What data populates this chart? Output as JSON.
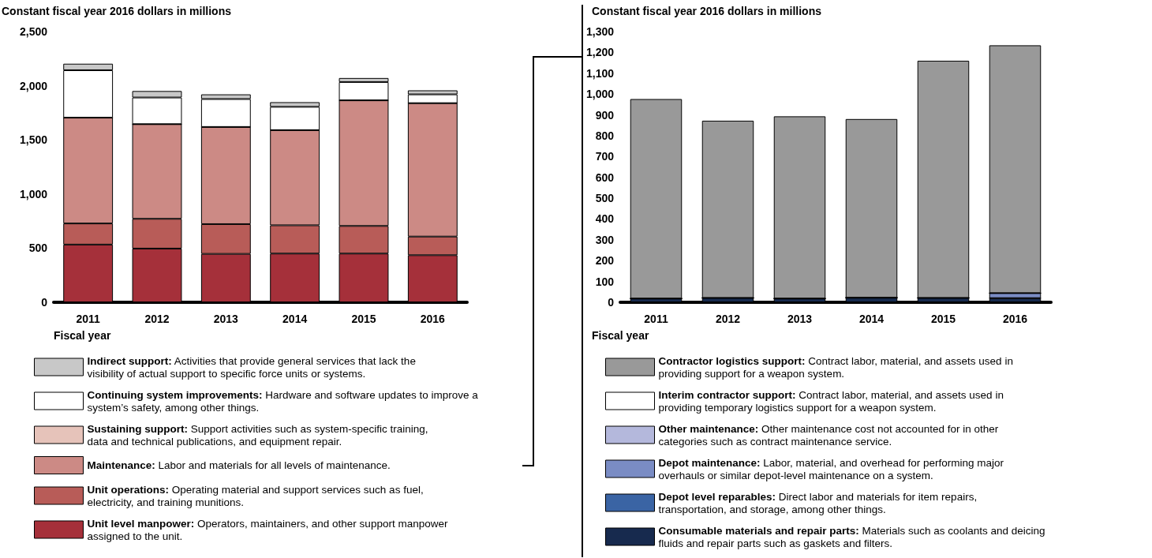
{
  "chart_data": [
    {
      "type": "bar",
      "stacked": true,
      "ylabel": "Constant fiscal year 2016 dollars in millions",
      "xlabel": "Fiscal year",
      "categories": [
        "2011",
        "2012",
        "2013",
        "2014",
        "2015",
        "2016"
      ],
      "ylim": [
        0,
        2500
      ],
      "yticks": [
        0,
        500,
        {
          "value": 1000,
          "label": "1,000"
        },
        {
          "value": 1500,
          "label": "1,500"
        },
        {
          "value": 2000,
          "label": "2,000"
        },
        {
          "value": 2500,
          "label": "2,500"
        }
      ],
      "grid": false,
      "legend": "bottom",
      "series": [
        {
          "name": "Unit level manpower: Operators, maintainers, and other support manpower assigned to the unit.",
          "color": "#a5303a",
          "values": [
            533,
            496,
            447,
            450,
            450,
            435
          ]
        },
        {
          "name": "Unit operations: Operating material and support services such as fuel, electricity, and training munitions.",
          "color": "#b85c58",
          "values": [
            195,
            275,
            275,
            261,
            255,
            172
          ]
        },
        {
          "name": "Maintenance: Labor and materials for all levels of maintenance.",
          "color": "#cc8a85",
          "values": [
            977,
            874,
            897,
            879,
            1160,
            1232
          ]
        },
        {
          "name": "Sustaining support: Support activities such as system-specific training, data and technical publications, and equipment repair.",
          "color": "#e6c3ba",
          "values": [
            0,
            0,
            0,
            0,
            0,
            0
          ]
        },
        {
          "name": "Continuing system improvements: Hardware and software updates to improve a system’s safety, among other things.",
          "color": "#ffffff",
          "values": [
            438,
            246,
            258,
            215,
            169,
            81
          ]
        },
        {
          "name": "Indirect support: Activities that provide general services that lack the visibility of actual support to specific force units or systems.",
          "color": "#c8c8c8",
          "values": [
            60,
            60,
            43,
            43,
            37,
            37
          ]
        }
      ]
    },
    {
      "type": "bar",
      "stacked": true,
      "ylabel": "Constant fiscal year 2016 dollars in millions",
      "xlabel": "Fiscal year",
      "categories": [
        "2011",
        "2012",
        "2013",
        "2014",
        "2015",
        "2016"
      ],
      "ylim": [
        0,
        1300
      ],
      "yticks": [
        0,
        100,
        200,
        300,
        400,
        500,
        600,
        700,
        800,
        900,
        {
          "value": 1000,
          "label": "1,000"
        },
        {
          "value": 1100,
          "label": "1,100"
        },
        {
          "value": 1200,
          "label": "1,200"
        },
        {
          "value": 1300,
          "label": "1,300"
        }
      ],
      "grid": false,
      "legend": "bottom",
      "series": [
        {
          "name": "Consumable materials and repair parts: Materials such as coolants and deicing fluids and repair parts such as gaskets and filters.",
          "color": "#172a4e",
          "values": [
            18,
            21,
            18,
            22,
            21,
            20
          ]
        },
        {
          "name": "Depot level reparables: Direct labor and materials for item repairs, transportation, and storage, among other things.",
          "color": "#3a64a4",
          "values": [
            0,
            0,
            0,
            0,
            0,
            0
          ]
        },
        {
          "name": "Depot maintenance: Labor, material, and overhead for performing major overhauls or similar depot-level maintenance on a system.",
          "color": "#7a8cc4",
          "values": [
            0,
            0,
            0,
            0,
            0,
            24
          ]
        },
        {
          "name": "Other maintenance: Other maintenance cost not accounted for in other categories such as contract maintenance service.",
          "color": "#b4b8dc",
          "values": [
            0,
            0,
            0,
            0,
            0,
            0
          ]
        },
        {
          "name": "Interim contractor support: Contract labor, material, and assets used in providing temporary logistics support for a weapon system.",
          "color": "#ffffff",
          "values": [
            0,
            0,
            0,
            0,
            0,
            0
          ]
        },
        {
          "name": "Contractor logistics support: Contract labor, material, and assets used in providing support for a weapon system.",
          "color": "#999999",
          "values": [
            958,
            851,
            875,
            858,
            1139,
            1190
          ]
        }
      ]
    }
  ]
}
